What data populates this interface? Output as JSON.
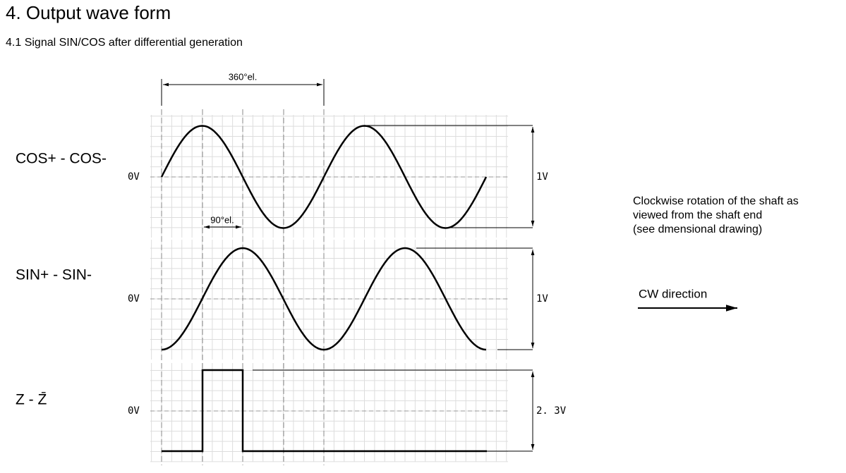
{
  "header": {
    "title": "4.  Output wave form",
    "subtitle": "4.1  Signal SIN/COS after differential generation"
  },
  "dimensions": {
    "period": "360°el.",
    "quarter": "90°el."
  },
  "signals": [
    {
      "label": "COS+ - COS-",
      "zero": "0V",
      "amplitude": "1V"
    },
    {
      "label": "SIN+ - SIN-",
      "zero": "0V",
      "amplitude": "1V"
    },
    {
      "label": "Z - Z̄",
      "zero": "0V",
      "amplitude": "2. 3V"
    }
  ],
  "note": {
    "lines": [
      "Clockwise rotation of the shaft as",
      "viewed from the shaft end",
      "(see dmensional drawing)"
    ],
    "direction": "CW direction"
  }
}
